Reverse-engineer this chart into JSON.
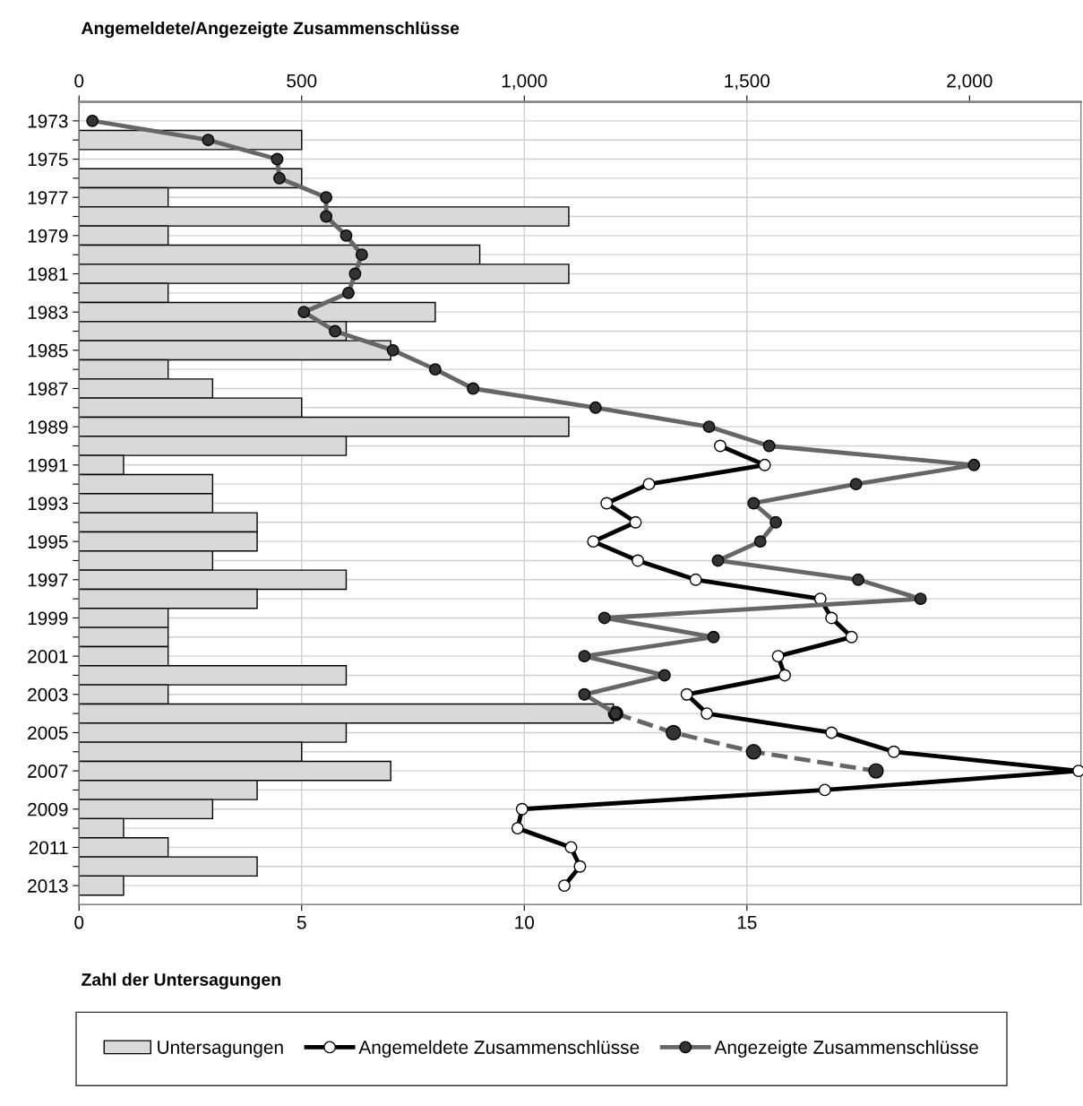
{
  "chart_data": {
    "type": "bar",
    "orientation": "horizontal",
    "xlabel": "Zahl der Untersagungen",
    "x2label": "Angemeldete/Angezeigte Zusammenschlüsse",
    "categories": [
      "1973",
      null,
      "1975",
      null,
      "1977",
      null,
      "1979",
      null,
      "1981",
      null,
      "1983",
      null,
      "1985",
      null,
      "1987",
      null,
      "1989",
      null,
      "1991",
      null,
      "1993",
      null,
      "1995",
      null,
      "1997",
      null,
      "1999",
      null,
      "2001",
      null,
      "2003",
      null,
      "2005",
      null,
      "2007",
      null,
      "2009",
      null,
      "2011",
      null,
      "2013"
    ],
    "series": [
      {
        "name": "Untersagungen",
        "color": "#d9d9d9",
        "values": [
          0,
          5,
          0,
          5,
          2,
          11,
          2,
          9,
          11,
          2,
          8,
          6,
          7,
          2,
          3,
          5,
          11,
          6,
          1,
          3,
          3,
          4,
          4,
          3,
          6,
          4,
          2,
          2,
          2,
          6,
          2,
          12,
          6,
          5,
          7,
          4,
          3,
          1,
          2,
          4,
          1
        ]
      },
      {
        "name": "Angemeldete Zusammenschlüsse",
        "type": "line",
        "axis": "x2",
        "color": "#000000",
        "marker": "circle",
        "line_style": "solid",
        "values": [
          null,
          null,
          null,
          null,
          null,
          null,
          null,
          null,
          null,
          null,
          null,
          null,
          null,
          null,
          null,
          null,
          null,
          1440,
          1540,
          1280,
          1185,
          1250,
          1155,
          1255,
          1385,
          1665,
          1690,
          1735,
          1570,
          1585,
          1365,
          1410,
          1690,
          1830,
          2245,
          1675,
          995,
          985,
          1105,
          1125,
          1090
        ]
      },
      {
        "name": "Angezeigte Zusammenschlüsse",
        "type": "line",
        "axis": "x2",
        "color": "#666666",
        "marker": "circle",
        "line_style": "solid",
        "values": [
          30,
          290,
          445,
          450,
          555,
          555,
          600,
          635,
          620,
          605,
          505,
          575,
          705,
          800,
          885,
          1160,
          1415,
          1550,
          2010,
          1745,
          1515,
          1565,
          1530,
          1435,
          1750,
          1890,
          1180,
          1425,
          1135,
          1315,
          1135,
          1205,
          null,
          null,
          null,
          null,
          null,
          null,
          null,
          null,
          null
        ]
      },
      {
        "type": "line",
        "axis": "x2",
        "color": "#666666",
        "marker": "circle",
        "line_style": "dashed",
        "values": [
          null,
          null,
          null,
          null,
          null,
          null,
          null,
          null,
          null,
          null,
          null,
          null,
          null,
          null,
          null,
          null,
          null,
          null,
          null,
          null,
          null,
          null,
          null,
          null,
          null,
          null,
          null,
          null,
          null,
          null,
          null,
          1205,
          1335,
          1515,
          1790,
          null,
          null,
          null,
          null,
          null,
          null
        ]
      }
    ],
    "xlim": [
      0,
      22.5
    ],
    "xticks": [
      0,
      5,
      10,
      15
    ],
    "x2lim": [
      0,
      2250
    ],
    "x2ticks": [
      0,
      500,
      {
        "value": 1000,
        "label": "1,000"
      },
      {
        "value": 1500,
        "label": "1,500"
      },
      {
        "value": 2000,
        "label": "2,000"
      }
    ],
    "grid": true,
    "legend": "bottom"
  }
}
